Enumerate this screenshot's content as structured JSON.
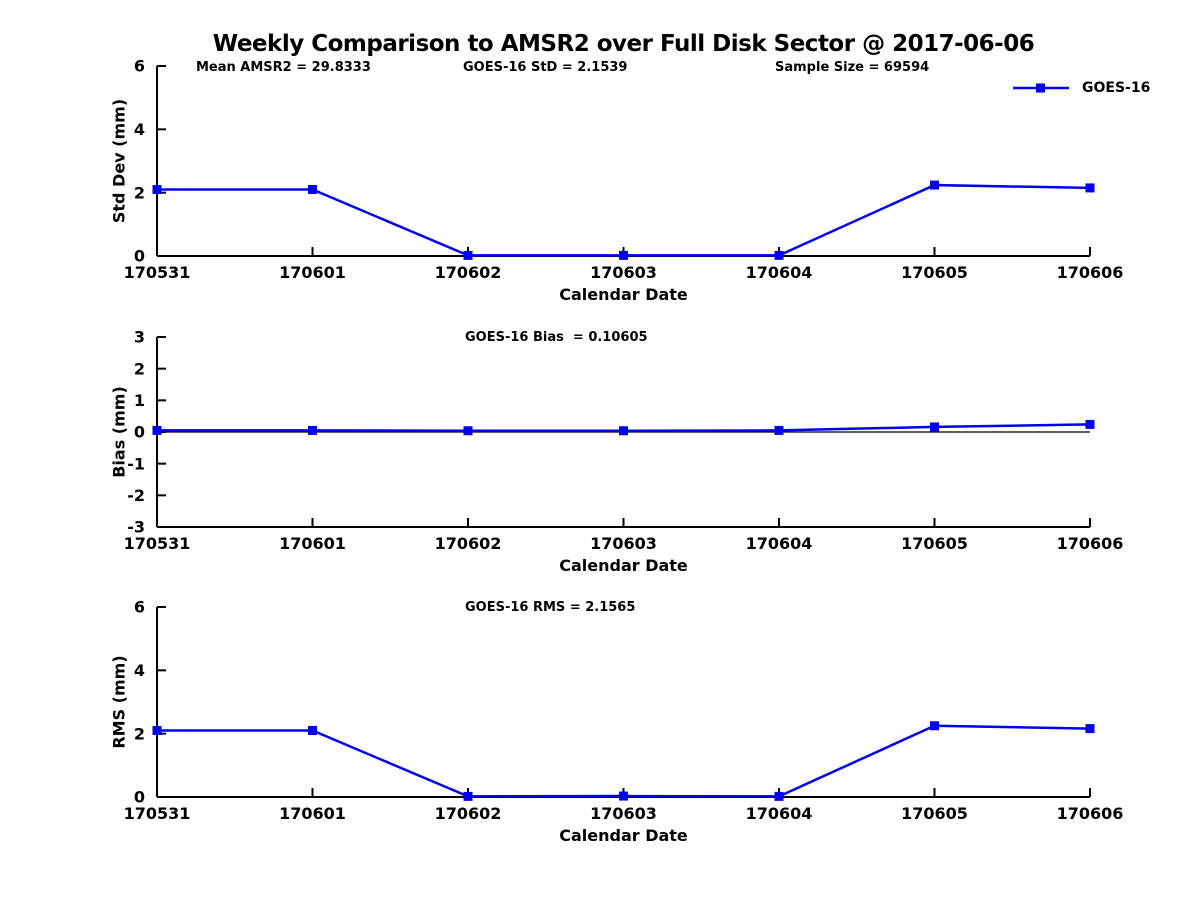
{
  "title": "Weekly Comparison to AMSR2 over Full Disk Sector @ 2017-06-06",
  "legend": {
    "label": "GOES-16",
    "position": "top-right"
  },
  "colors": {
    "line": "#0000EE",
    "marker": "#0000EE",
    "axis": "#000000",
    "text": "#000000",
    "background": "#FFFFFF"
  },
  "chart_data": [
    {
      "type": "line",
      "ylabel": "Std Dev (mm)",
      "xlabel": "Calendar Date",
      "categories": [
        "170531",
        "170601",
        "170602",
        "170603",
        "170604",
        "170605",
        "170606"
      ],
      "series": [
        {
          "name": "GOES-16",
          "values": [
            2.1,
            2.1,
            0.02,
            0.02,
            0.02,
            2.24,
            2.15
          ],
          "marker": "square"
        }
      ],
      "ylim": [
        0,
        6
      ],
      "yticks": [
        0,
        2,
        4,
        6
      ],
      "grid": false,
      "zero_line": false,
      "legend_position": "top-right",
      "annotations": [
        {
          "text": "Mean AMSR2 = 29.8333"
        },
        {
          "text": "GOES-16 StD = 2.1539"
        },
        {
          "text": "Sample Size = 69594"
        }
      ]
    },
    {
      "type": "line",
      "ylabel": "Bias (mm)",
      "xlabel": "Calendar Date",
      "categories": [
        "170531",
        "170601",
        "170602",
        "170603",
        "170604",
        "170605",
        "170606"
      ],
      "series": [
        {
          "name": "GOES-16",
          "values": [
            0.05,
            0.05,
            0.04,
            0.04,
            0.05,
            0.16,
            0.24
          ],
          "marker": "square"
        }
      ],
      "ylim": [
        -3,
        3
      ],
      "yticks": [
        -3,
        -2,
        -1,
        0,
        1,
        2,
        3
      ],
      "grid": false,
      "zero_line": true,
      "annotations": [
        {
          "text": "GOES-16 Bias  = 0.10605"
        }
      ]
    },
    {
      "type": "line",
      "ylabel": "RMS (mm)",
      "xlabel": "Calendar Date",
      "categories": [
        "170531",
        "170601",
        "170602",
        "170603",
        "170604",
        "170605",
        "170606"
      ],
      "series": [
        {
          "name": "GOES-16",
          "values": [
            2.1,
            2.1,
            0.02,
            0.03,
            0.02,
            2.25,
            2.16
          ],
          "marker": "square"
        }
      ],
      "ylim": [
        0,
        6
      ],
      "yticks": [
        0,
        2,
        4,
        6
      ],
      "grid": false,
      "zero_line": false,
      "annotations": [
        {
          "text": "GOES-16 RMS = 2.1565"
        }
      ]
    }
  ]
}
